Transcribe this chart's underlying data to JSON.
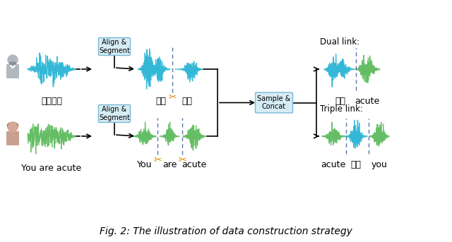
{
  "title": "Fig. 2: The illustration of data construction strategy",
  "title_fontsize": 10,
  "bg_color": "#ffffff",
  "wave_color_blue": "#29b5d5",
  "wave_color_green": "#5dbb5d",
  "box_facecolor": "#d6ecf5",
  "box_edgecolor": "#7ab8d4",
  "text_color": "#000000",
  "scissors_color": "#e08800",
  "dashed_color": "#5577aa",
  "label_chinese_top": "打开电视",
  "label_chinese_seg_left": "打开",
  "label_chinese_seg_right": "电视",
  "label_english_top": "You are acute",
  "label_english_seg1": "You",
  "label_english_seg2": "are",
  "label_english_seg3": "acute",
  "label_dual_bottom_left": "打开",
  "label_dual_bottom_right": "acute",
  "label_triple_bottom1": "acute",
  "label_triple_bottom2": "电视",
  "label_triple_bottom3": "you",
  "dual_link": "Dual link:",
  "triple_link": "Triple link:",
  "box1_text": "Align &\nSegment",
  "box2_text": "Align &\nSegment",
  "box3_text": "Sample &\nConcat"
}
